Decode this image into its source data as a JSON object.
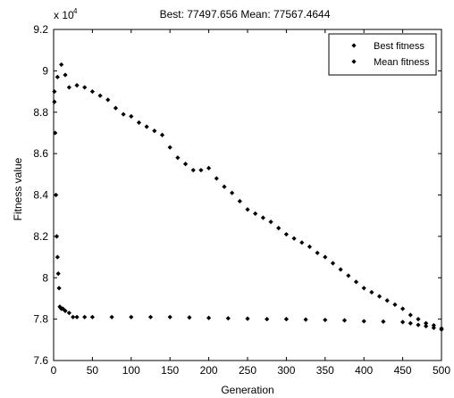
{
  "chart_data": {
    "type": "scatter",
    "title": "Best: 77497.656 Mean: 77567.4644",
    "xlabel": "Generation",
    "ylabel": "Fitness value",
    "y_exponent_label": "x 10",
    "y_exponent_power": "4",
    "xlim": [
      0,
      500
    ],
    "ylim": [
      7.6,
      9.2
    ],
    "x_ticks": [
      0,
      50,
      100,
      150,
      200,
      250,
      300,
      350,
      400,
      450,
      500
    ],
    "x_tick_labels": [
      "0",
      "50",
      "100",
      "150",
      "200",
      "250",
      "300",
      "350",
      "400",
      "450",
      "500"
    ],
    "y_ticks": [
      7.6,
      7.8,
      8.0,
      8.2,
      8.4,
      8.6,
      8.8,
      9.0,
      9.2
    ],
    "y_tick_labels": [
      "7.6",
      "7.8",
      "8",
      "8.2",
      "8.4",
      "8.6",
      "8.8",
      "9",
      "9.2"
    ],
    "grid": false,
    "legend_position": "top-right",
    "marker_color": "#000000",
    "series": [
      {
        "name": "Best fitness",
        "x": [
          1,
          2,
          3,
          4,
          5,
          6,
          7,
          8,
          9,
          10,
          12,
          15,
          20,
          25,
          30,
          40,
          50,
          75,
          100,
          125,
          150,
          175,
          200,
          225,
          250,
          275,
          300,
          325,
          350,
          375,
          400,
          425,
          450,
          460,
          470,
          480,
          490,
          500
        ],
        "y": [
          8.85,
          8.7,
          8.4,
          8.2,
          8.1,
          8.02,
          7.95,
          7.86,
          7.855,
          7.85,
          7.85,
          7.84,
          7.83,
          7.81,
          7.81,
          7.81,
          7.81,
          7.81,
          7.81,
          7.81,
          7.81,
          7.808,
          7.806,
          7.804,
          7.802,
          7.8,
          7.8,
          7.798,
          7.796,
          7.794,
          7.79,
          7.788,
          7.786,
          7.78,
          7.772,
          7.766,
          7.758,
          7.75
        ]
      },
      {
        "name": "Mean fitness",
        "x": [
          1,
          5,
          10,
          15,
          20,
          30,
          40,
          50,
          60,
          70,
          80,
          90,
          100,
          110,
          120,
          130,
          140,
          150,
          160,
          170,
          180,
          190,
          200,
          210,
          220,
          230,
          240,
          250,
          260,
          270,
          280,
          290,
          300,
          310,
          320,
          330,
          340,
          350,
          360,
          370,
          380,
          390,
          400,
          410,
          420,
          430,
          440,
          450,
          460,
          470,
          480,
          490,
          500
        ],
        "y": [
          8.9,
          8.97,
          9.03,
          8.98,
          8.92,
          8.93,
          8.92,
          8.9,
          8.88,
          8.86,
          8.82,
          8.79,
          8.78,
          8.75,
          8.73,
          8.71,
          8.69,
          8.63,
          8.58,
          8.55,
          8.52,
          8.52,
          8.53,
          8.48,
          8.44,
          8.41,
          8.37,
          8.33,
          8.31,
          8.29,
          8.27,
          8.24,
          8.21,
          8.19,
          8.17,
          8.15,
          8.12,
          8.1,
          8.07,
          8.04,
          8.01,
          7.98,
          7.95,
          7.93,
          7.91,
          7.89,
          7.87,
          7.85,
          7.82,
          7.8,
          7.78,
          7.77,
          7.755
        ]
      }
    ]
  }
}
